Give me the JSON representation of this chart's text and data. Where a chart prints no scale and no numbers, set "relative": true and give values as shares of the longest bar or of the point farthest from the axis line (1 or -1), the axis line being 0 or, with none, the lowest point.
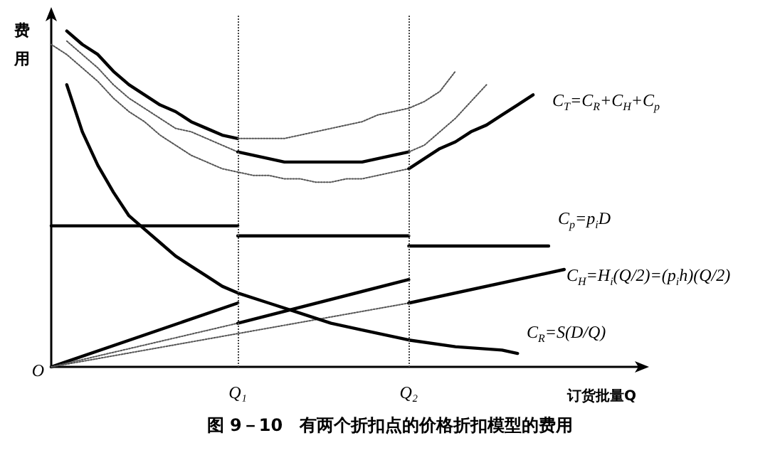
{
  "chart_data": {
    "type": "line",
    "title": "图 9－10　有两个折扣点的价格折扣模型的费用",
    "xlabel": "订货批量Q",
    "ylabel": "费用",
    "relative": true,
    "marker": "none",
    "categories": [
      null,
      null,
      null,
      null,
      null,
      null,
      null,
      null,
      null,
      null,
      null,
      null,
      "Q₁",
      null,
      null,
      null,
      null,
      null,
      null,
      null,
      null,
      null,
      null,
      "Q₂",
      null,
      null,
      null,
      null,
      null,
      null,
      null,
      null,
      null,
      null,
      null,
      null,
      null,
      null,
      null
    ],
    "ref_lines": [
      {
        "axis": "x",
        "value": "Q₁",
        "line_style": "dotted",
        "color": "#444444"
      },
      {
        "axis": "x",
        "value": "Q₂",
        "line_style": "dotted",
        "color": "#444444"
      }
    ],
    "annotations": [
      "C$_{T}$=C$_{R}$+C$_{H}$+C$_{p}$",
      "C$_{p}$=p$_{i}$D",
      "C$_{H}$=H$_{i}$(Q/2)=(p$_{i}$h)(Q/2)",
      "C$_{R}$=S(D/Q)",
      "O"
    ],
    "series": [
      {
        "color": "#000000",
        "line_style": "solid",
        "values": [
          null,
          1.0,
          0.96,
          0.93,
          0.88,
          0.84,
          0.81,
          0.78,
          0.76,
          0.73,
          0.71,
          0.69,
          0.68,
          null,
          null,
          null,
          null,
          null,
          null,
          null,
          null,
          null,
          null,
          null,
          null,
          null,
          null,
          null,
          null,
          null,
          null,
          null,
          null,
          null,
          null,
          null,
          null,
          null,
          null
        ]
      },
      {
        "color": "#555555",
        "line_style": "dotted",
        "values": [
          null,
          null,
          null,
          null,
          null,
          null,
          null,
          null,
          null,
          null,
          null,
          null,
          0.68,
          0.68,
          0.68,
          0.68,
          0.69,
          0.7,
          0.71,
          0.72,
          0.73,
          0.75,
          0.76,
          0.77,
          0.79,
          0.82,
          0.88,
          null,
          null,
          null,
          null,
          null,
          null,
          null,
          null,
          null,
          null,
          null,
          null
        ]
      },
      {
        "color": "#555555",
        "line_style": "dotted",
        "values": [
          null,
          0.97,
          0.93,
          0.89,
          0.84,
          0.8,
          0.77,
          0.74,
          0.71,
          0.7,
          0.68,
          0.66,
          0.64,
          null,
          null,
          null,
          null,
          null,
          null,
          null,
          null,
          null,
          null,
          null,
          null,
          null,
          null,
          null,
          null,
          null,
          null,
          null,
          null,
          null,
          null,
          null,
          null,
          null,
          null
        ]
      },
      {
        "color": "#000000",
        "line_style": "solid",
        "values": [
          null,
          null,
          null,
          null,
          null,
          null,
          null,
          null,
          null,
          null,
          null,
          null,
          0.64,
          0.63,
          0.62,
          0.61,
          0.61,
          0.61,
          0.61,
          0.61,
          0.61,
          0.62,
          0.63,
          0.64,
          null,
          null,
          null,
          null,
          null,
          null,
          null,
          null,
          null,
          null,
          null,
          null,
          null,
          null,
          null
        ]
      },
      {
        "color": "#555555",
        "line_style": "dotted",
        "values": [
          null,
          null,
          null,
          null,
          null,
          null,
          null,
          null,
          null,
          null,
          null,
          null,
          null,
          null,
          null,
          null,
          null,
          null,
          null,
          null,
          null,
          null,
          null,
          0.64,
          0.66,
          0.7,
          0.74,
          0.79,
          0.84,
          null,
          null,
          null,
          null,
          null,
          null,
          null,
          null,
          null,
          null
        ]
      },
      {
        "color": "#555555",
        "line_style": "dotted",
        "values": [
          0.96,
          0.93,
          0.89,
          0.85,
          0.8,
          0.76,
          0.73,
          0.69,
          0.66,
          0.63,
          0.61,
          0.59,
          0.58,
          0.57,
          0.57,
          0.56,
          0.56,
          0.55,
          0.55,
          0.56,
          0.56,
          0.57,
          0.58,
          0.59,
          null,
          null,
          null,
          null,
          null,
          null,
          null,
          null,
          null,
          null,
          null,
          null,
          null,
          null,
          null
        ]
      },
      {
        "color": "#000000",
        "line_style": "solid",
        "values": [
          null,
          null,
          null,
          null,
          null,
          null,
          null,
          null,
          null,
          null,
          null,
          null,
          null,
          null,
          null,
          null,
          null,
          null,
          null,
          null,
          null,
          null,
          null,
          0.59,
          0.62,
          0.65,
          0.67,
          0.7,
          0.72,
          0.75,
          0.78,
          0.81,
          null,
          null,
          null,
          null,
          null,
          null,
          null
        ]
      },
      {
        "color": "#000000",
        "line_style": "solid",
        "values": [
          0.42,
          null,
          null,
          null,
          null,
          null,
          null,
          null,
          null,
          null,
          null,
          null,
          0.42,
          null,
          null,
          null,
          null,
          null,
          null,
          null,
          null,
          null,
          null,
          null,
          null,
          null,
          null,
          null,
          null,
          null,
          null,
          null,
          null,
          null,
          null,
          null,
          null,
          null,
          null
        ]
      },
      {
        "color": "#000000",
        "line_style": "solid",
        "values": [
          null,
          null,
          null,
          null,
          null,
          null,
          null,
          null,
          null,
          null,
          null,
          null,
          0.39,
          null,
          null,
          null,
          null,
          null,
          null,
          null,
          null,
          null,
          null,
          0.39,
          null,
          null,
          null,
          null,
          null,
          null,
          null,
          null,
          null,
          null,
          null,
          null,
          null,
          null,
          null
        ]
      },
      {
        "color": "#000000",
        "line_style": "solid",
        "values": [
          null,
          null,
          null,
          null,
          null,
          null,
          null,
          null,
          null,
          null,
          null,
          null,
          null,
          null,
          null,
          null,
          null,
          null,
          null,
          null,
          null,
          null,
          null,
          0.36,
          null,
          null,
          null,
          null,
          null,
          null,
          null,
          null,
          0.36,
          null,
          null,
          null,
          null,
          null,
          null
        ]
      },
      {
        "color": "#000000",
        "line_style": "solid",
        "values": [
          0,
          null,
          null,
          null,
          null,
          null,
          null,
          null,
          null,
          null,
          null,
          null,
          0.19,
          null,
          null,
          null,
          null,
          null,
          null,
          null,
          null,
          null,
          null,
          null,
          null,
          null,
          null,
          null,
          null,
          null,
          null,
          null,
          null,
          null,
          null,
          null,
          null,
          null,
          null
        ]
      },
      {
        "color": "#555555",
        "line_style": "dotted",
        "values": [
          0,
          null,
          null,
          null,
          null,
          null,
          null,
          null,
          null,
          null,
          null,
          null,
          0.13,
          null,
          null,
          null,
          null,
          null,
          null,
          null,
          null,
          null,
          null,
          null,
          null,
          null,
          null,
          null,
          null,
          null,
          null,
          null,
          null,
          null,
          null,
          null,
          null,
          null,
          null
        ]
      },
      {
        "color": "#000000",
        "line_style": "solid",
        "values": [
          null,
          null,
          null,
          null,
          null,
          null,
          null,
          null,
          null,
          null,
          null,
          null,
          0.13,
          null,
          null,
          null,
          null,
          null,
          null,
          null,
          null,
          null,
          null,
          0.26,
          null,
          null,
          null,
          null,
          null,
          null,
          null,
          null,
          null,
          null,
          null,
          null,
          null,
          null,
          null
        ]
      },
      {
        "color": "#555555",
        "line_style": "dotted",
        "values": [
          0,
          null,
          null,
          null,
          null,
          null,
          null,
          null,
          null,
          null,
          null,
          null,
          null,
          null,
          null,
          null,
          null,
          null,
          null,
          null,
          null,
          null,
          null,
          0.19,
          null,
          null,
          null,
          null,
          null,
          null,
          null,
          null,
          null,
          null,
          null,
          null,
          null,
          null,
          null
        ]
      },
      {
        "color": "#000000",
        "line_style": "solid",
        "values": [
          null,
          null,
          null,
          null,
          null,
          null,
          null,
          null,
          null,
          null,
          null,
          null,
          null,
          null,
          null,
          null,
          null,
          null,
          null,
          null,
          null,
          null,
          null,
          0.19,
          null,
          null,
          null,
          null,
          null,
          null,
          null,
          null,
          null,
          0.29,
          null,
          null,
          null,
          null,
          null
        ]
      },
      {
        "color": "#000000",
        "line_style": "solid",
        "values": [
          null,
          0.84,
          0.7,
          0.6,
          0.52,
          0.45,
          0.41,
          0.37,
          0.33,
          0.3,
          0.27,
          0.24,
          0.22,
          null,
          0.19,
          null,
          0.16,
          null,
          0.13,
          null,
          0.11,
          null,
          null,
          0.08,
          null,
          null,
          0.06,
          null,
          null,
          0.05,
          0.04,
          null,
          null,
          null,
          null,
          null,
          null,
          null,
          null
        ]
      }
    ]
  }
}
